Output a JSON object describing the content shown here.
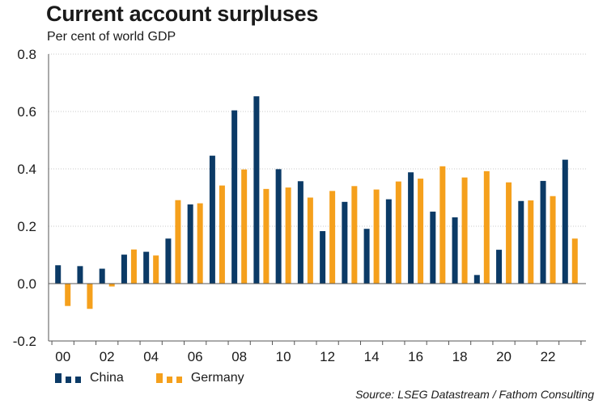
{
  "chart_data": {
    "type": "bar",
    "title": "Current account surpluses",
    "subtitle": "Per cent of world GDP",
    "x": [
      2000,
      2001,
      2002,
      2003,
      2004,
      2005,
      2006,
      2007,
      2008,
      2009,
      2010,
      2011,
      2012,
      2013,
      2014,
      2015,
      2016,
      2017,
      2018,
      2019,
      2020,
      2021,
      2022,
      2023
    ],
    "xtick_labels": [
      "00",
      "02",
      "04",
      "06",
      "08",
      "10",
      "12",
      "14",
      "16",
      "18",
      "20",
      "22"
    ],
    "series": [
      {
        "name": "China",
        "color": "#0b3a66",
        "values": [
          0.064,
          0.061,
          0.052,
          0.101,
          0.111,
          0.157,
          0.276,
          0.446,
          0.604,
          0.653,
          0.399,
          0.357,
          0.183,
          0.285,
          0.191,
          0.294,
          0.388,
          0.251,
          0.231,
          0.03,
          0.118,
          0.288,
          0.358,
          0.432
        ]
      },
      {
        "name": "Germany",
        "color": "#f5a01c",
        "values": [
          -0.078,
          -0.088,
          -0.01,
          0.119,
          0.098,
          0.291,
          0.28,
          0.342,
          0.398,
          0.33,
          0.335,
          0.3,
          0.323,
          0.34,
          0.328,
          0.356,
          0.366,
          0.409,
          0.37,
          0.392,
          0.353,
          0.29,
          0.305,
          0.157
        ]
      }
    ],
    "ylim": [
      -0.2,
      0.8
    ],
    "yticks": [
      -0.2,
      0.0,
      0.2,
      0.4,
      0.6,
      0.8
    ],
    "ytick_labels": [
      "-0.2",
      "0.0",
      "0.2",
      "0.4",
      "0.6",
      "0.8"
    ],
    "grid": true,
    "legend_position": "bottom-left"
  },
  "source": "Source: LSEG Datastream / Fathom Consulting"
}
